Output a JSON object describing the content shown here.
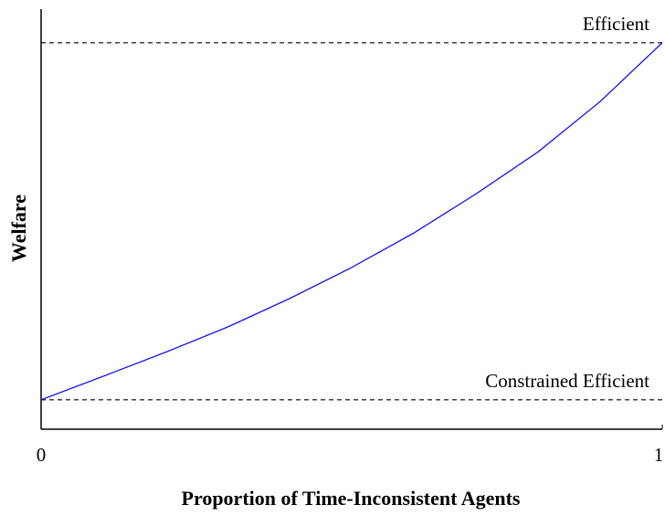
{
  "chart_data": {
    "type": "line",
    "xlabel": "Proportion of Time-Inconsistent Agents",
    "ylabel": "Welfare",
    "x": [
      0,
      0.1,
      0.2,
      0.3,
      0.4,
      0.5,
      0.6,
      0.7,
      0.8,
      0.9,
      1
    ],
    "values": [
      0.07,
      0.126,
      0.183,
      0.243,
      0.311,
      0.385,
      0.467,
      0.56,
      0.66,
      0.78,
      0.92
    ],
    "color": "#0000ff",
    "xlim": [
      0,
      1
    ],
    "xticks": [
      0,
      1
    ],
    "ylim": [
      0,
      1
    ],
    "reference_lines": [
      {
        "label": "Efficient",
        "value": 0.92
      },
      {
        "label": "Constrained Efficient",
        "value": 0.07
      }
    ]
  }
}
